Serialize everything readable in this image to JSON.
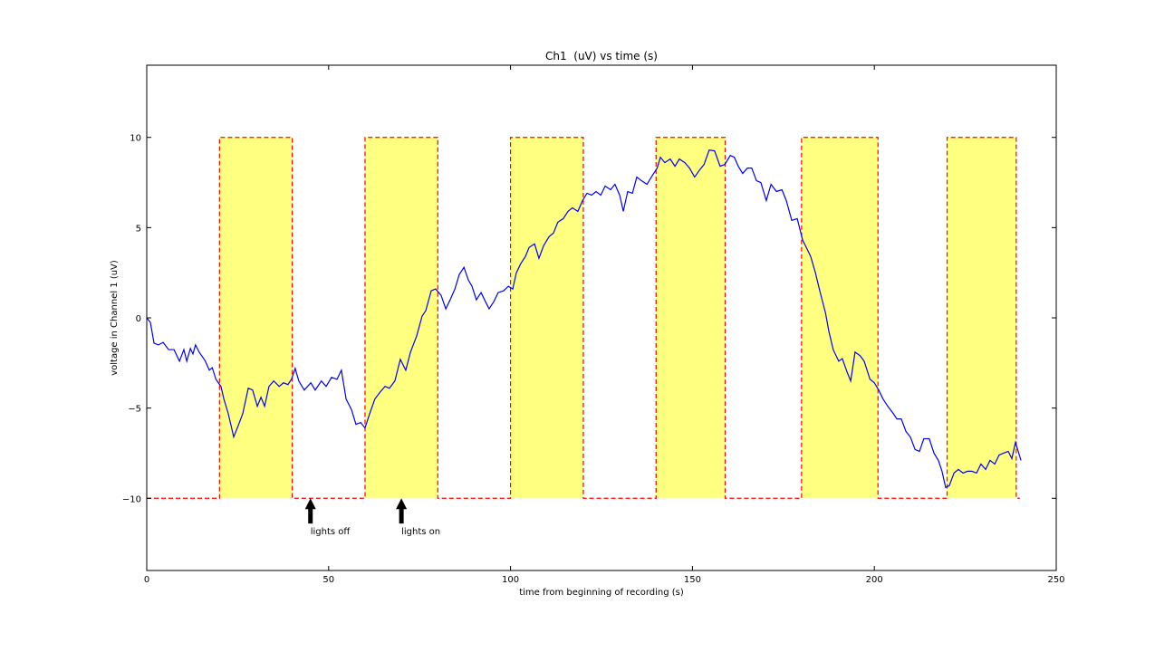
{
  "chart_data": {
    "type": "line",
    "title": "Ch1  (uV) vs time (s)",
    "x_label": "time from beginning of recording (s)",
    "y_label": "voltage in Channel 1 (uV)",
    "xlim": [
      0,
      250
    ],
    "ylim": [
      -14,
      14
    ],
    "xticks": [
      0,
      50,
      100,
      150,
      200,
      250
    ],
    "yticks": [
      {
        "value": -10,
        "label": "−10"
      },
      {
        "value": -5,
        "label": "−5"
      },
      0,
      5,
      10
    ],
    "grid": false,
    "series": [
      {
        "color": "#ff0000",
        "fill": "#ffff80",
        "dashed": true,
        "x": [
          0,
          20,
          20,
          40,
          40,
          60,
          60,
          80,
          80,
          100,
          100,
          120,
          120,
          140,
          140,
          159,
          159,
          180,
          180,
          201,
          201,
          220,
          220,
          239,
          239,
          240
        ],
        "values": [
          -10,
          -10,
          10,
          10,
          -10,
          -10,
          10,
          10,
          -10,
          -10,
          10,
          10,
          -10,
          -10,
          10,
          10,
          -10,
          -10,
          10,
          10,
          -10,
          -10,
          10,
          10,
          -10,
          -10
        ]
      },
      {
        "color": "#0000ff",
        "x": [
          0,
          1,
          2,
          3.2,
          4.5,
          6,
          7.5,
          9,
          10.2,
          11,
          12,
          12.7,
          13.4,
          14.4,
          16,
          17.2,
          18,
          19,
          20.4,
          21.2,
          22.4,
          23.9,
          25.1,
          26.4,
          27.9,
          29.1,
          30.4,
          31.4,
          32.4,
          33.6,
          34.9,
          36.4,
          37.6,
          38.8,
          39.8,
          40.8,
          41.8,
          43.3,
          45.1,
          46.3,
          48,
          49.3,
          50.8,
          52.3,
          53.5,
          54.8,
          56.3,
          57.5,
          58.8,
          60,
          61.3,
          62.7,
          64.2,
          65.5,
          66.7,
          68.2,
          69.7,
          71.2,
          72.5,
          74.2,
          75.7,
          76.7,
          78.2,
          79.4,
          80.9,
          82.2,
          83.4,
          84.7,
          85.9,
          87.2,
          88.4,
          89.4,
          90.6,
          91.9,
          93.1,
          94.1,
          95.4,
          96.6,
          98.1,
          99.4,
          100.6,
          101.6,
          102.8,
          104.1,
          105.1,
          106.6,
          107.8,
          109.1,
          110.6,
          111.8,
          113,
          114.5,
          115.8,
          117,
          118.5,
          119.8,
          121,
          122.3,
          123.5,
          124.8,
          126,
          127.5,
          128.7,
          130,
          131,
          132.2,
          133.5,
          134.7,
          136,
          137.5,
          138.7,
          140.3,
          141.2,
          142.4,
          143.9,
          145.2,
          146.4,
          147.9,
          149.2,
          150.6,
          152,
          153.2,
          154.6,
          156.1,
          157.6,
          158.9,
          160.4,
          161.5,
          162.6,
          163.8,
          165.1,
          166.3,
          167.6,
          168.8,
          170.3,
          171.6,
          173.1,
          174.6,
          175.8,
          177.3,
          178.8,
          180.3,
          181.3,
          182.5,
          183.8,
          185,
          186.6,
          187.5,
          188.7,
          190.2,
          191.2,
          192.5,
          193.5,
          194.7,
          196.1,
          197.2,
          198.8,
          200,
          201.2,
          202.4,
          203.7,
          205.2,
          206.2,
          207.4,
          208.7,
          209.9,
          211.2,
          212.4,
          213.6,
          215.1,
          216.4,
          217.6,
          218.6,
          219.6,
          220.6,
          221.9,
          223.1,
          224.4,
          225.6,
          226.8,
          228.1,
          229.3,
          230.6,
          231.8,
          233.1,
          234.3,
          235.5,
          236.8,
          237.8,
          238.8,
          240.3
        ],
        "values": [
          0,
          -0.25,
          -1.4,
          -1.5,
          -1.36,
          -1.76,
          -1.76,
          -2.4,
          -1.76,
          -2.4,
          -1.7,
          -2,
          -1.5,
          -1.9,
          -2.36,
          -2.9,
          -2.76,
          -3.4,
          -3.8,
          -4.5,
          -5.3,
          -6.6,
          -6,
          -5.3,
          -3.9,
          -4,
          -4.9,
          -4.4,
          -4.9,
          -3.8,
          -3.5,
          -3.8,
          -3.6,
          -3.7,
          -3.4,
          -2.8,
          -3.5,
          -4,
          -3.6,
          -4,
          -3.5,
          -3.8,
          -3.3,
          -3.4,
          -2.9,
          -4.5,
          -5.1,
          -5.9,
          -5.8,
          -6.1,
          -5.3,
          -4.5,
          -4.1,
          -3.8,
          -3.9,
          -3.5,
          -2.3,
          -2.9,
          -1.9,
          -1,
          0.1,
          0.4,
          1.5,
          1.6,
          1.25,
          0.5,
          1,
          1.6,
          2.4,
          2.8,
          2.1,
          1.75,
          1,
          1.4,
          0.9,
          0.5,
          0.9,
          1.4,
          1.5,
          1.75,
          1.6,
          2.5,
          3,
          3.4,
          3.9,
          4.1,
          3.3,
          4,
          4.5,
          4.7,
          5.3,
          5.5,
          5.9,
          6.1,
          5.9,
          6.5,
          6.9,
          6.8,
          7,
          6.8,
          7.3,
          7.1,
          7.4,
          6.8,
          5.9,
          7,
          6.9,
          7.8,
          7.6,
          7.4,
          7.8,
          8.3,
          8.9,
          8.6,
          8.8,
          8.4,
          8.8,
          8.6,
          8.3,
          7.8,
          8.2,
          8.5,
          9.3,
          9.25,
          8.4,
          8.5,
          9,
          8.9,
          8.4,
          8,
          8.3,
          8.3,
          7.6,
          7.5,
          6.5,
          7.4,
          7,
          7.1,
          6.5,
          5.4,
          5.5,
          4.3,
          3.9,
          3.4,
          2.5,
          1.5,
          0.25,
          -0.75,
          -1.76,
          -2.4,
          -2.26,
          -3,
          -3.5,
          -1.9,
          -2.1,
          -2.4,
          -3.4,
          -3.6,
          -4,
          -4.5,
          -4.9,
          -5.3,
          -5.6,
          -5.6,
          -6.3,
          -6.6,
          -7.3,
          -7.4,
          -6.7,
          -6.7,
          -7.5,
          -7.9,
          -8.5,
          -9.4,
          -9.3,
          -8.6,
          -8.4,
          -8.6,
          -8.5,
          -8.5,
          -8.6,
          -8.1,
          -8.4,
          -7.9,
          -8.1,
          -7.6,
          -7.5,
          -7.4,
          -7.8,
          -6.9,
          -7.9
        ]
      }
    ],
    "annotations": [
      {
        "text": "lights off",
        "x": 45,
        "y": -10,
        "text_x": 45,
        "text_y": -11.8
      },
      {
        "text": "lights on",
        "x": 70,
        "y": -10,
        "text_x": 70,
        "text_y": -11.8
      }
    ]
  }
}
